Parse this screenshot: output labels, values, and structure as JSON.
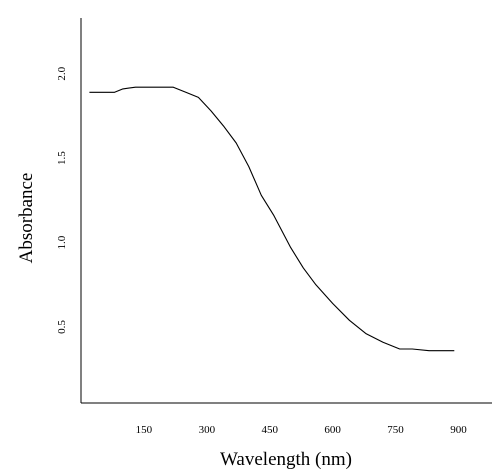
{
  "chart_data": {
    "type": "line",
    "title": "",
    "xlabel": "Wavelength (nm)",
    "ylabel": "Absorbance",
    "xlim": [
      0,
      980
    ],
    "ylim": [
      0.05,
      2.33
    ],
    "xticks": [
      150,
      300,
      450,
      600,
      750,
      900
    ],
    "xtick_labels": [
      "150",
      "300",
      "450",
      "600",
      "750",
      "900"
    ],
    "yticks": [
      0.5,
      1.0,
      1.5,
      2.0
    ],
    "ytick_labels": [
      "0.5",
      "1.0",
      "1.5",
      "2.0"
    ],
    "grid": false,
    "legend": "none",
    "series": [
      {
        "color": "#000000",
        "x": [
          20,
          50,
          80,
          100,
          130,
          160,
          190,
          220,
          250,
          280,
          310,
          340,
          370,
          400,
          430,
          460,
          500,
          530,
          560,
          600,
          640,
          680,
          720,
          760,
          790,
          830,
          860,
          890
        ],
        "y": [
          1.89,
          1.89,
          1.89,
          1.91,
          1.92,
          1.92,
          1.92,
          1.92,
          1.89,
          1.86,
          1.78,
          1.69,
          1.59,
          1.45,
          1.28,
          1.16,
          0.97,
          0.85,
          0.75,
          0.64,
          0.54,
          0.46,
          0.41,
          0.37,
          0.37,
          0.36,
          0.36,
          0.36
        ]
      }
    ]
  }
}
